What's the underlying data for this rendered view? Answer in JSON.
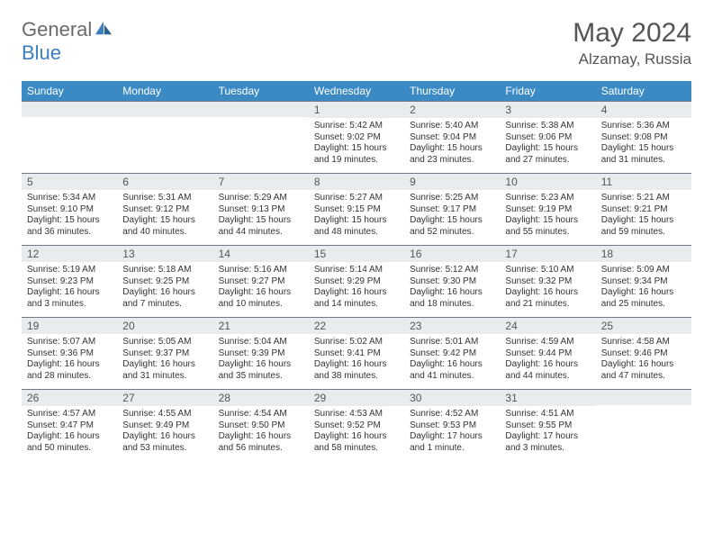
{
  "logo": {
    "main": "General",
    "accent": "Blue"
  },
  "title": {
    "month_year": "May 2024",
    "location": "Alzamay, Russia"
  },
  "colors": {
    "header_bg": "#3b8ac4",
    "header_fg": "#ffffff",
    "daynum_bg": "#e9ecef",
    "daynum_border": "#6f7a84",
    "text": "#333333",
    "logo_gray": "#6a6a6a",
    "logo_blue": "#3c7fc0"
  },
  "day_headers": [
    "Sunday",
    "Monday",
    "Tuesday",
    "Wednesday",
    "Thursday",
    "Friday",
    "Saturday"
  ],
  "weeks": [
    [
      {
        "num": "",
        "lines": []
      },
      {
        "num": "",
        "lines": []
      },
      {
        "num": "",
        "lines": []
      },
      {
        "num": "1",
        "lines": [
          "Sunrise: 5:42 AM",
          "Sunset: 9:02 PM",
          "Daylight: 15 hours",
          "and 19 minutes."
        ]
      },
      {
        "num": "2",
        "lines": [
          "Sunrise: 5:40 AM",
          "Sunset: 9:04 PM",
          "Daylight: 15 hours",
          "and 23 minutes."
        ]
      },
      {
        "num": "3",
        "lines": [
          "Sunrise: 5:38 AM",
          "Sunset: 9:06 PM",
          "Daylight: 15 hours",
          "and 27 minutes."
        ]
      },
      {
        "num": "4",
        "lines": [
          "Sunrise: 5:36 AM",
          "Sunset: 9:08 PM",
          "Daylight: 15 hours",
          "and 31 minutes."
        ]
      }
    ],
    [
      {
        "num": "5",
        "lines": [
          "Sunrise: 5:34 AM",
          "Sunset: 9:10 PM",
          "Daylight: 15 hours",
          "and 36 minutes."
        ]
      },
      {
        "num": "6",
        "lines": [
          "Sunrise: 5:31 AM",
          "Sunset: 9:12 PM",
          "Daylight: 15 hours",
          "and 40 minutes."
        ]
      },
      {
        "num": "7",
        "lines": [
          "Sunrise: 5:29 AM",
          "Sunset: 9:13 PM",
          "Daylight: 15 hours",
          "and 44 minutes."
        ]
      },
      {
        "num": "8",
        "lines": [
          "Sunrise: 5:27 AM",
          "Sunset: 9:15 PM",
          "Daylight: 15 hours",
          "and 48 minutes."
        ]
      },
      {
        "num": "9",
        "lines": [
          "Sunrise: 5:25 AM",
          "Sunset: 9:17 PM",
          "Daylight: 15 hours",
          "and 52 minutes."
        ]
      },
      {
        "num": "10",
        "lines": [
          "Sunrise: 5:23 AM",
          "Sunset: 9:19 PM",
          "Daylight: 15 hours",
          "and 55 minutes."
        ]
      },
      {
        "num": "11",
        "lines": [
          "Sunrise: 5:21 AM",
          "Sunset: 9:21 PM",
          "Daylight: 15 hours",
          "and 59 minutes."
        ]
      }
    ],
    [
      {
        "num": "12",
        "lines": [
          "Sunrise: 5:19 AM",
          "Sunset: 9:23 PM",
          "Daylight: 16 hours",
          "and 3 minutes."
        ]
      },
      {
        "num": "13",
        "lines": [
          "Sunrise: 5:18 AM",
          "Sunset: 9:25 PM",
          "Daylight: 16 hours",
          "and 7 minutes."
        ]
      },
      {
        "num": "14",
        "lines": [
          "Sunrise: 5:16 AM",
          "Sunset: 9:27 PM",
          "Daylight: 16 hours",
          "and 10 minutes."
        ]
      },
      {
        "num": "15",
        "lines": [
          "Sunrise: 5:14 AM",
          "Sunset: 9:29 PM",
          "Daylight: 16 hours",
          "and 14 minutes."
        ]
      },
      {
        "num": "16",
        "lines": [
          "Sunrise: 5:12 AM",
          "Sunset: 9:30 PM",
          "Daylight: 16 hours",
          "and 18 minutes."
        ]
      },
      {
        "num": "17",
        "lines": [
          "Sunrise: 5:10 AM",
          "Sunset: 9:32 PM",
          "Daylight: 16 hours",
          "and 21 minutes."
        ]
      },
      {
        "num": "18",
        "lines": [
          "Sunrise: 5:09 AM",
          "Sunset: 9:34 PM",
          "Daylight: 16 hours",
          "and 25 minutes."
        ]
      }
    ],
    [
      {
        "num": "19",
        "lines": [
          "Sunrise: 5:07 AM",
          "Sunset: 9:36 PM",
          "Daylight: 16 hours",
          "and 28 minutes."
        ]
      },
      {
        "num": "20",
        "lines": [
          "Sunrise: 5:05 AM",
          "Sunset: 9:37 PM",
          "Daylight: 16 hours",
          "and 31 minutes."
        ]
      },
      {
        "num": "21",
        "lines": [
          "Sunrise: 5:04 AM",
          "Sunset: 9:39 PM",
          "Daylight: 16 hours",
          "and 35 minutes."
        ]
      },
      {
        "num": "22",
        "lines": [
          "Sunrise: 5:02 AM",
          "Sunset: 9:41 PM",
          "Daylight: 16 hours",
          "and 38 minutes."
        ]
      },
      {
        "num": "23",
        "lines": [
          "Sunrise: 5:01 AM",
          "Sunset: 9:42 PM",
          "Daylight: 16 hours",
          "and 41 minutes."
        ]
      },
      {
        "num": "24",
        "lines": [
          "Sunrise: 4:59 AM",
          "Sunset: 9:44 PM",
          "Daylight: 16 hours",
          "and 44 minutes."
        ]
      },
      {
        "num": "25",
        "lines": [
          "Sunrise: 4:58 AM",
          "Sunset: 9:46 PM",
          "Daylight: 16 hours",
          "and 47 minutes."
        ]
      }
    ],
    [
      {
        "num": "26",
        "lines": [
          "Sunrise: 4:57 AM",
          "Sunset: 9:47 PM",
          "Daylight: 16 hours",
          "and 50 minutes."
        ]
      },
      {
        "num": "27",
        "lines": [
          "Sunrise: 4:55 AM",
          "Sunset: 9:49 PM",
          "Daylight: 16 hours",
          "and 53 minutes."
        ]
      },
      {
        "num": "28",
        "lines": [
          "Sunrise: 4:54 AM",
          "Sunset: 9:50 PM",
          "Daylight: 16 hours",
          "and 56 minutes."
        ]
      },
      {
        "num": "29",
        "lines": [
          "Sunrise: 4:53 AM",
          "Sunset: 9:52 PM",
          "Daylight: 16 hours",
          "and 58 minutes."
        ]
      },
      {
        "num": "30",
        "lines": [
          "Sunrise: 4:52 AM",
          "Sunset: 9:53 PM",
          "Daylight: 17 hours",
          "and 1 minute."
        ]
      },
      {
        "num": "31",
        "lines": [
          "Sunrise: 4:51 AM",
          "Sunset: 9:55 PM",
          "Daylight: 17 hours",
          "and 3 minutes."
        ]
      },
      {
        "num": "",
        "lines": []
      }
    ]
  ]
}
